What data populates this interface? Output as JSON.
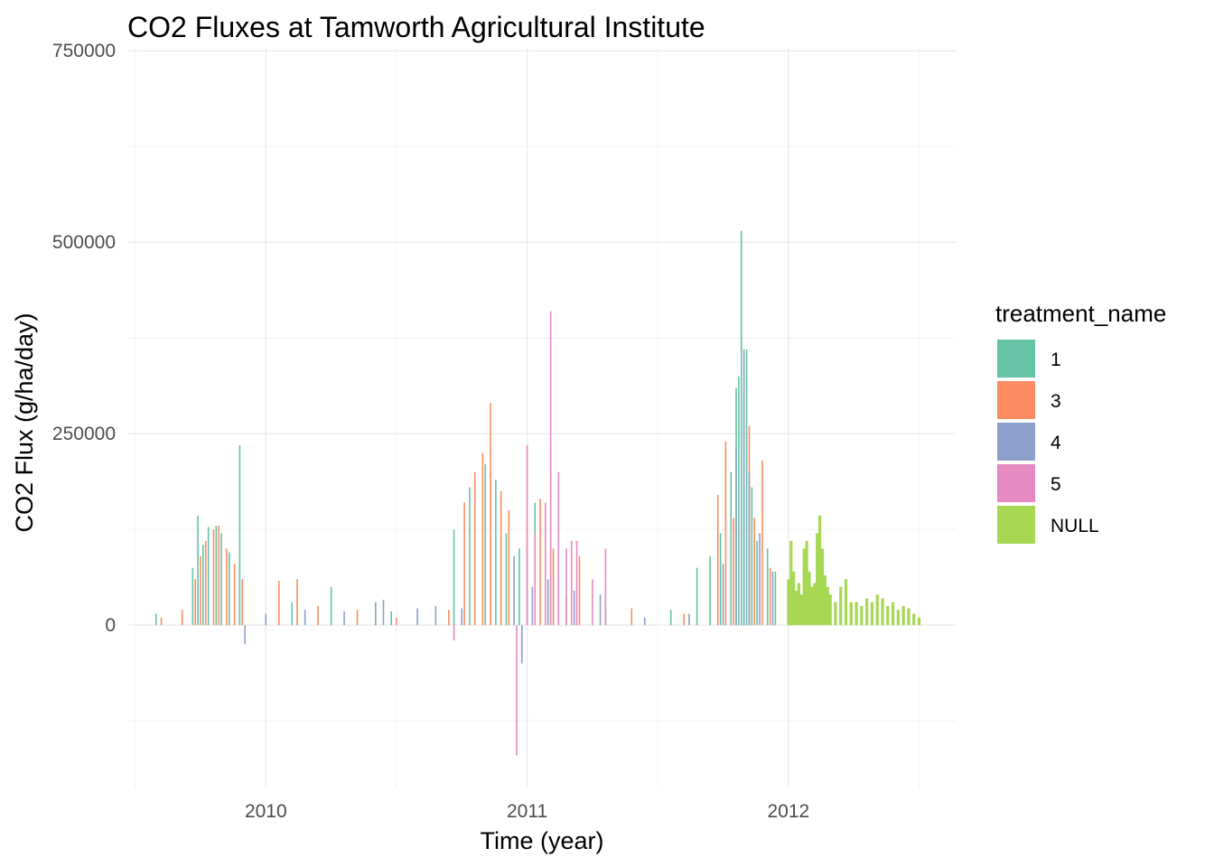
{
  "chart_data": {
    "type": "bar",
    "title": "CO2 Fluxes at Tamworth Agricultural Institute",
    "xlabel": "Time (year)",
    "ylabel": "CO2 Flux (g/ha/day)",
    "xlim": [
      2009.47,
      2012.64
    ],
    "ylim": [
      -212000,
      755000
    ],
    "x_ticks": [
      "2010",
      "2011",
      "2012"
    ],
    "y_ticks": [
      "0",
      "250000",
      "500000",
      "750000"
    ],
    "grid": true,
    "legend": {
      "title": "treatment_name",
      "position": "right",
      "entries": [
        "1",
        "3",
        "4",
        "5",
        "NULL"
      ]
    },
    "colors": {
      "1": "#66C2A5",
      "3": "#FC8D62",
      "4": "#8DA0CB",
      "5": "#E78AC3",
      "NULL": "#A6D854"
    },
    "series": [
      {
        "name": "1",
        "x": [
          2009.58,
          2009.72,
          2009.74,
          2009.76,
          2009.78,
          2009.81,
          2009.83,
          2009.86,
          2009.9,
          2010.0,
          2010.1,
          2010.25,
          2010.48,
          2010.72,
          2010.78,
          2010.84,
          2010.88,
          2010.92,
          2010.97,
          2011.03,
          2011.15,
          2011.3,
          2011.55,
          2011.65,
          2011.7,
          2011.74,
          2011.78,
          2011.8,
          2011.81,
          2011.82,
          2011.83,
          2011.84,
          2011.86,
          2011.88,
          2011.92,
          2011.95
        ],
        "y": [
          15000,
          75000,
          143000,
          105000,
          128000,
          130000,
          120000,
          95000,
          235000,
          12000,
          30000,
          50000,
          18000,
          125000,
          180000,
          210000,
          190000,
          120000,
          100000,
          160000,
          40000,
          30000,
          20000,
          75000,
          90000,
          120000,
          200000,
          310000,
          325000,
          515000,
          300000,
          360000,
          180000,
          110000,
          100000,
          70000
        ]
      },
      {
        "name": "3",
        "x": [
          2009.6,
          2009.68,
          2009.73,
          2009.75,
          2009.77,
          2009.8,
          2009.82,
          2009.85,
          2009.88,
          2009.91,
          2010.05,
          2010.12,
          2010.2,
          2010.35,
          2010.5,
          2010.7,
          2010.76,
          2010.8,
          2010.83,
          2010.86,
          2010.9,
          2010.93,
          2011.0,
          2011.05,
          2011.1,
          2011.2,
          2011.4,
          2011.6,
          2011.73,
          2011.76,
          2011.79,
          2011.85,
          2011.87,
          2011.9,
          2011.93
        ],
        "y": [
          10000,
          20000,
          60000,
          90000,
          110000,
          125000,
          130000,
          100000,
          80000,
          60000,
          58000,
          60000,
          25000,
          20000,
          10000,
          20000,
          160000,
          200000,
          225000,
          290000,
          175000,
          150000,
          140000,
          165000,
          100000,
          90000,
          22000,
          15000,
          170000,
          240000,
          140000,
          260000,
          140000,
          215000,
          75000
        ]
      },
      {
        "name": "4",
        "x": [
          2009.92,
          2010.0,
          2010.15,
          2010.3,
          2010.42,
          2010.45,
          2010.58,
          2010.65,
          2010.75,
          2010.95,
          2010.98,
          2011.02,
          2011.08,
          2011.18,
          2011.28,
          2011.45,
          2011.62,
          2011.75,
          2011.8,
          2011.83,
          2011.85,
          2011.89,
          2011.94
        ],
        "y": [
          -25000,
          15000,
          20000,
          18000,
          30000,
          33000,
          22000,
          25000,
          22000,
          90000,
          -50000,
          50000,
          60000,
          45000,
          40000,
          10000,
          15000,
          80000,
          230000,
          360000,
          200000,
          120000,
          70000
        ],
        "neg_min": []
      },
      {
        "name": "5",
        "x": [
          2010.72,
          2010.96,
          2011.0,
          2011.03,
          2011.07,
          2011.09,
          2011.12,
          2011.15,
          2011.17,
          2011.19,
          2011.25,
          2011.3
        ],
        "y": [
          -20000,
          -170000,
          235000,
          120000,
          160000,
          410000,
          200000,
          100000,
          110000,
          110000,
          60000,
          100000
        ]
      },
      {
        "name": "NULL",
        "x": [
          2012.0,
          2012.01,
          2012.02,
          2012.03,
          2012.04,
          2012.05,
          2012.06,
          2012.07,
          2012.08,
          2012.09,
          2012.1,
          2012.11,
          2012.12,
          2012.13,
          2012.14,
          2012.15,
          2012.16,
          2012.18,
          2012.2,
          2012.22,
          2012.24,
          2012.26,
          2012.28,
          2012.3,
          2012.32,
          2012.34,
          2012.36,
          2012.38,
          2012.4,
          2012.42,
          2012.44,
          2012.46,
          2012.48,
          2012.5
        ],
        "y": [
          60000,
          110000,
          70000,
          45000,
          55000,
          40000,
          100000,
          110000,
          70000,
          50000,
          55000,
          120000,
          143000,
          100000,
          65000,
          50000,
          40000,
          30000,
          50000,
          60000,
          30000,
          30000,
          25000,
          35000,
          30000,
          40000,
          35000,
          25000,
          30000,
          20000,
          25000,
          22000,
          15000,
          10000
        ]
      }
    ]
  }
}
